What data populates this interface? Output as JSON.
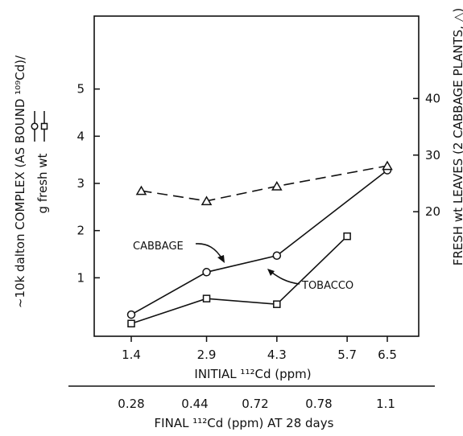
{
  "chart_data": {
    "type": "line",
    "x_ticks": [
      "1.4",
      "2.9",
      "4.3",
      "5.7",
      "6.5"
    ],
    "xlabel": "INITIAL ¹¹²Cd (ppm)",
    "x2_ticks": [
      "0.28",
      "0.44",
      "0.72",
      "0.78",
      "1.1"
    ],
    "x2label": "FINAL ¹¹²Cd (ppm) AT 28 days",
    "ylabel": "~10k dalton COMPLEX (AS BOUND ¹⁰⁹Cd)/",
    "ylabel_unit": "g fresh wt",
    "ylim": [
      0,
      6
    ],
    "y_ticks": [
      "1",
      "2",
      "3",
      "4",
      "5"
    ],
    "y2label": "FRESH wt LEAVES (2 CABBAGE PLANTS, △)",
    "y2lim": [
      0,
      50
    ],
    "y2_ticks": [
      "20",
      "30",
      "40"
    ],
    "series": [
      {
        "name": "CABBAGE",
        "marker": "circle",
        "axis": "left",
        "x": [
          1.4,
          2.9,
          4.3,
          6.5
        ],
        "y": [
          0.22,
          1.12,
          1.47,
          3.28
        ]
      },
      {
        "name": "TOBACCO",
        "marker": "square",
        "axis": "left",
        "x": [
          1.4,
          2.9,
          4.3,
          5.7
        ],
        "y": [
          0.03,
          0.56,
          0.44,
          1.88
        ]
      },
      {
        "marker": "triangle",
        "axis": "right",
        "x": [
          1.6,
          2.9,
          4.3,
          6.5
        ],
        "y": [
          23.7,
          21.9,
          24.5,
          28.1
        ]
      }
    ]
  }
}
